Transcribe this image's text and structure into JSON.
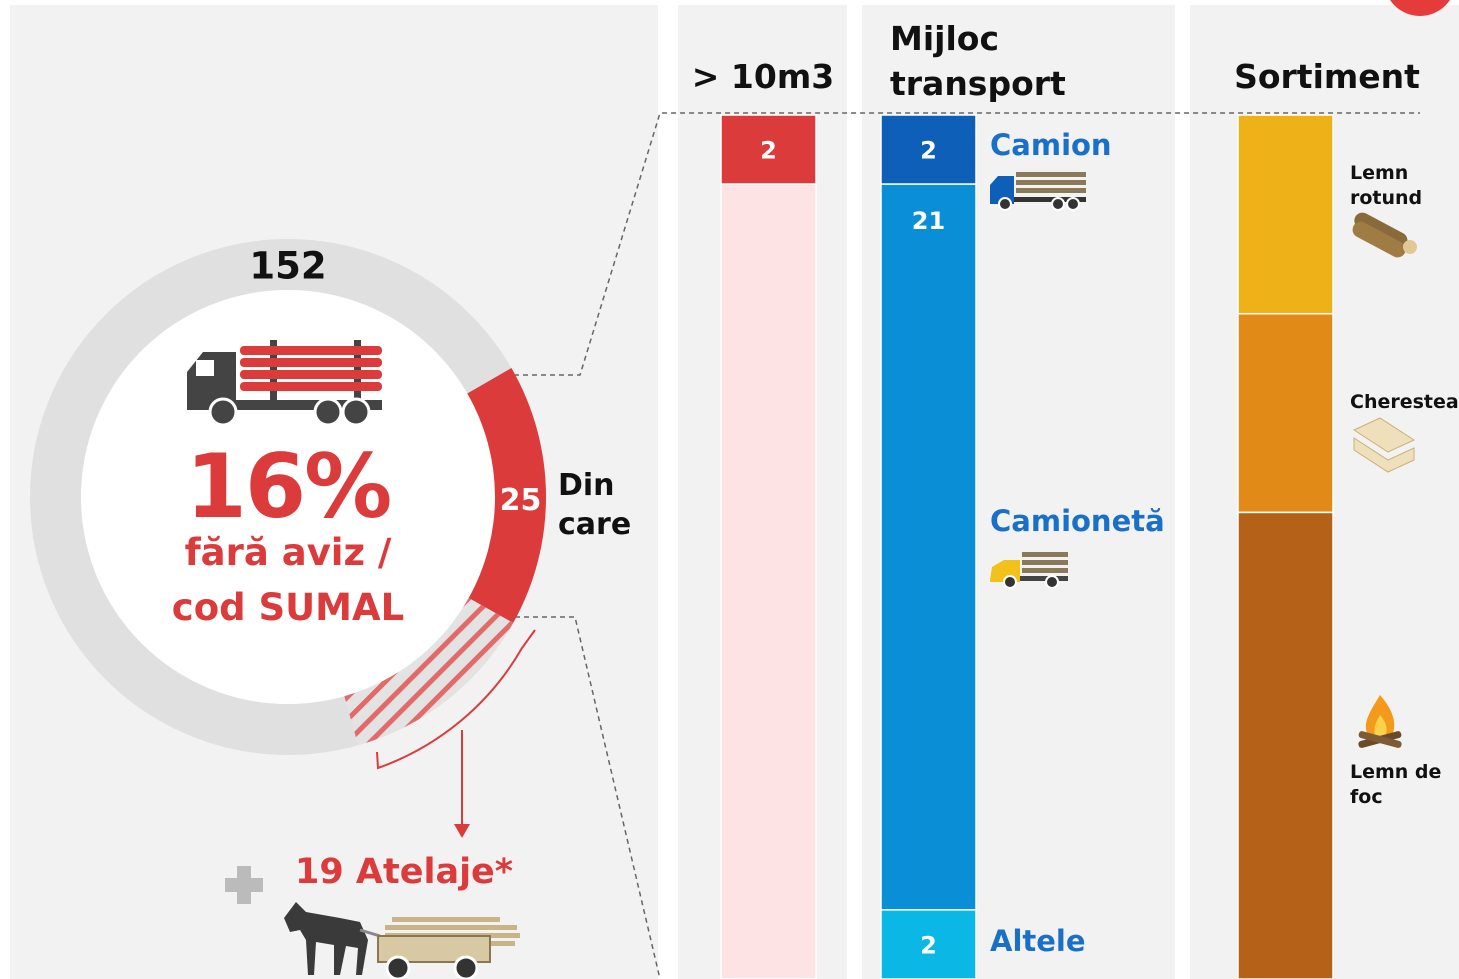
{
  "chart_data": [
    {
      "type": "donut",
      "total": 152,
      "headline": "16%",
      "caption": "fără aviz / cod SUMAL",
      "subset_label": "Din care",
      "gray_color": "#e0e0e0",
      "segments": [
        {
          "value": 25,
          "color": "#dc3b3b"
        },
        {
          "value": 19,
          "label": "19 Atelaje*",
          "color": "#dc3b3b",
          "hatched": true
        }
      ]
    },
    {
      "type": "stacked-bar",
      "title": "> 10m3",
      "segments": [
        {
          "value": 2,
          "color": "#dc3b3b"
        },
        {
          "value": 23,
          "color": "#fde3e4",
          "show_value": false
        }
      ]
    },
    {
      "type": "stacked-bar",
      "title": "Mijloc transport",
      "label_color": "#1a6fc8",
      "segments": [
        {
          "name": "Camion",
          "value": 2,
          "color": "#0d5fb8"
        },
        {
          "name": "Camionetă",
          "value": 21,
          "color": "#0a8fd6"
        },
        {
          "name": "Altele",
          "value": 2,
          "color": "#0bb7e4"
        }
      ]
    },
    {
      "type": "stacked-bar",
      "title": "Sortiment",
      "label_color": "#111111",
      "segments": [
        {
          "name": "Lemn rotund",
          "value": 5.75,
          "color": "#eeb118",
          "show_value": false
        },
        {
          "name": "Cherestea",
          "value": 5.75,
          "color": "#e28a17",
          "show_value": false
        },
        {
          "name": "Lemn de foc",
          "value": 13.5,
          "color": "#b56117",
          "show_value": false
        }
      ]
    }
  ]
}
